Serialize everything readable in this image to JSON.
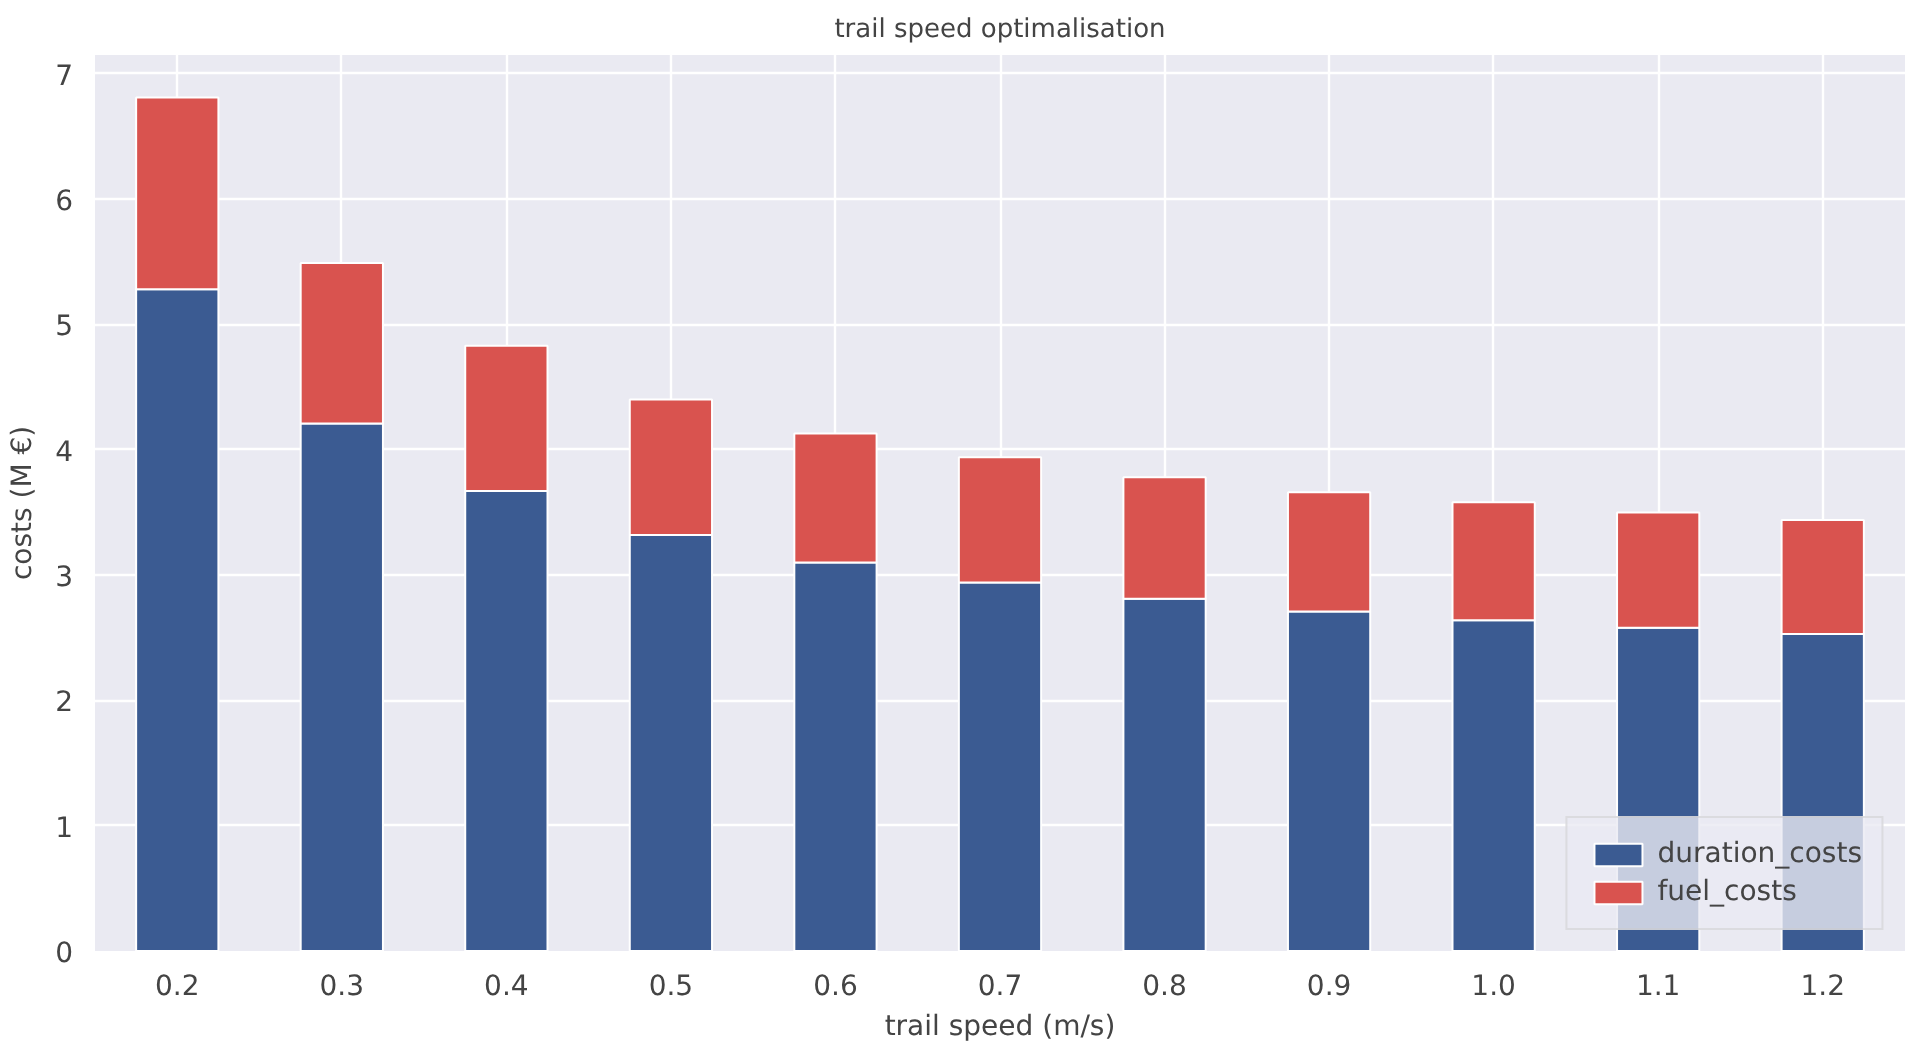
{
  "chart_data": {
    "type": "bar",
    "title": "trail speed optimalisation",
    "xlabel": "trail speed (m/s)",
    "ylabel": "costs (M €)",
    "categories": [
      "0.2",
      "0.3",
      "0.4",
      "0.5",
      "0.6",
      "0.7",
      "0.8",
      "0.9",
      "1.0",
      "1.1",
      "1.2"
    ],
    "stacked": true,
    "ylim": [
      0,
      7.15
    ],
    "yticks": [
      0,
      1,
      2,
      3,
      4,
      5,
      6,
      7
    ],
    "grid": true,
    "legend": "bottom right",
    "series": [
      {
        "name": "duration_costs",
        "color": "#3b5b92",
        "values": [
          5.28,
          4.21,
          3.67,
          3.32,
          3.1,
          2.94,
          2.81,
          2.71,
          2.64,
          2.58,
          2.53
        ]
      },
      {
        "name": "fuel_costs",
        "color": "#d9534f",
        "values": [
          1.53,
          1.28,
          1.16,
          1.08,
          1.03,
          1.0,
          0.97,
          0.95,
          0.94,
          0.92,
          0.91
        ]
      }
    ]
  }
}
